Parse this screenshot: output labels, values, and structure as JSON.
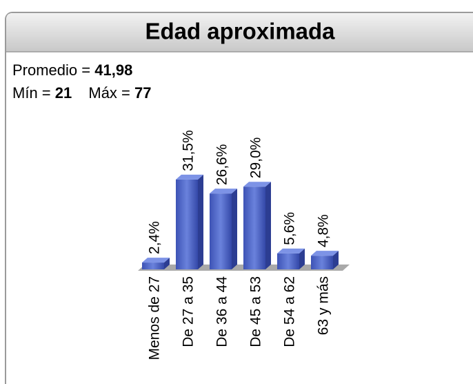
{
  "chart_data": {
    "type": "bar3d",
    "title": "Edad aproximada",
    "stats": [
      {
        "label": "Promedio =",
        "value": "41,98"
      },
      {
        "label": "Mín =",
        "value": "21"
      },
      {
        "label": "Máx =",
        "value": "77"
      }
    ],
    "categories": [
      "Menos de 27",
      "De 27 a 35",
      "De 36 a 44",
      "De 45 a 53",
      "De 54 a 62",
      "63 y más"
    ],
    "values": [
      2.4,
      31.5,
      26.6,
      29.0,
      5.6,
      4.8
    ],
    "value_labels": [
      "2,4%",
      "31,5%",
      "26,6%",
      "29,0%",
      "5,6%",
      "4,8%"
    ],
    "color": "#4a63c4"
  }
}
